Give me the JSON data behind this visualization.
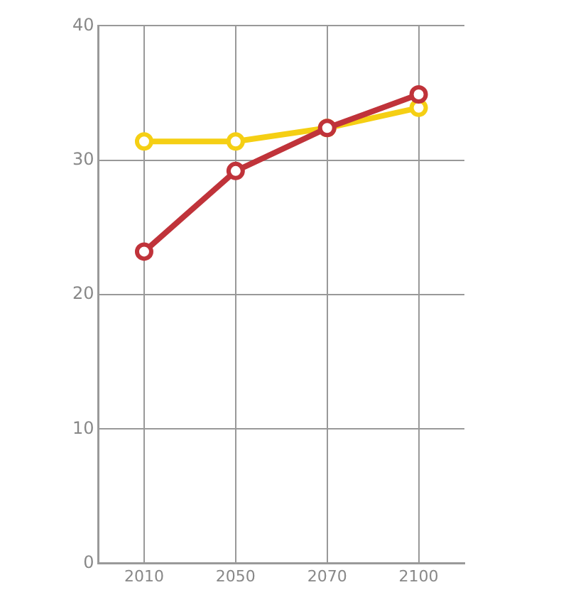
{
  "chart_data": {
    "type": "line",
    "categories": [
      "2010",
      "2050",
      "2070",
      "2100"
    ],
    "series": [
      {
        "color": "#f5cf14",
        "values": [
          31.4,
          31.4,
          32.4,
          33.9
        ]
      },
      {
        "color": "#c0333a",
        "values": [
          23.2,
          29.2,
          32.4,
          34.9
        ]
      }
    ],
    "ylim": [
      0,
      40
    ],
    "yticks": [
      0,
      10,
      20,
      30,
      40
    ],
    "grid": true,
    "marker": "circle",
    "line_style": "solid"
  }
}
